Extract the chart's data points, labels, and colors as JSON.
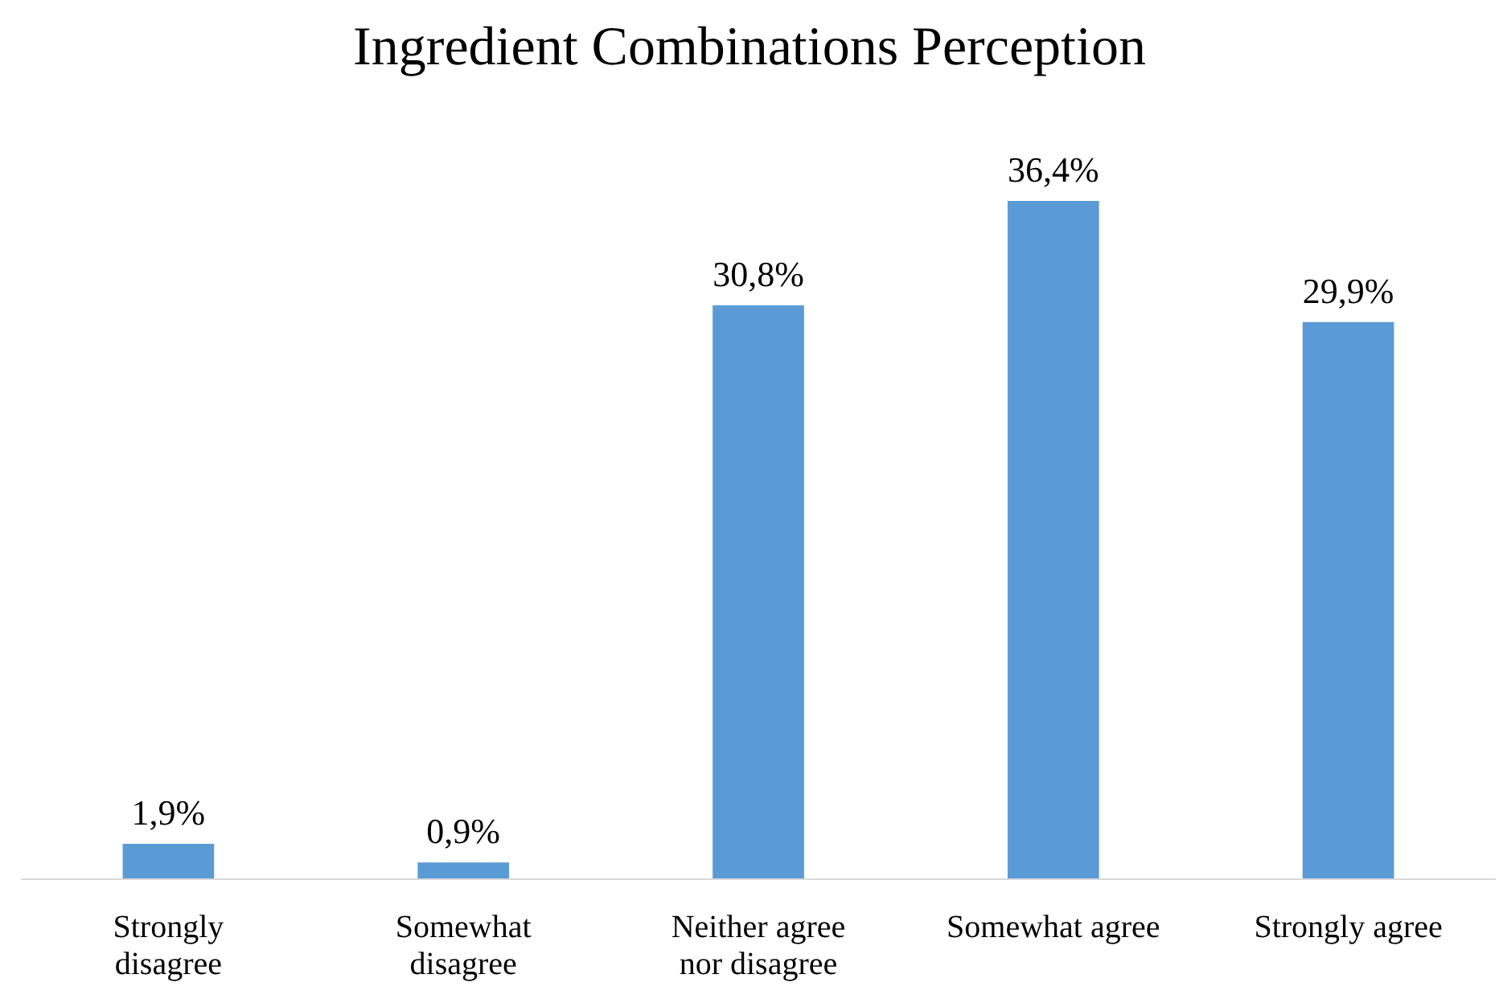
{
  "chart_data": {
    "type": "bar",
    "title": "Ingredient Combinations Perception",
    "categories": [
      "Strongly disagree",
      "Somewhat disagree",
      "Neither agree nor disagree",
      "Somewhat agree",
      "Strongly agree"
    ],
    "values": [
      1.9,
      0.9,
      30.8,
      36.4,
      29.9
    ],
    "value_labels": [
      "1,9%",
      "0,9%",
      "30,8%",
      "36,4%",
      "29,9%"
    ],
    "color": "#5b9bd5"
  }
}
